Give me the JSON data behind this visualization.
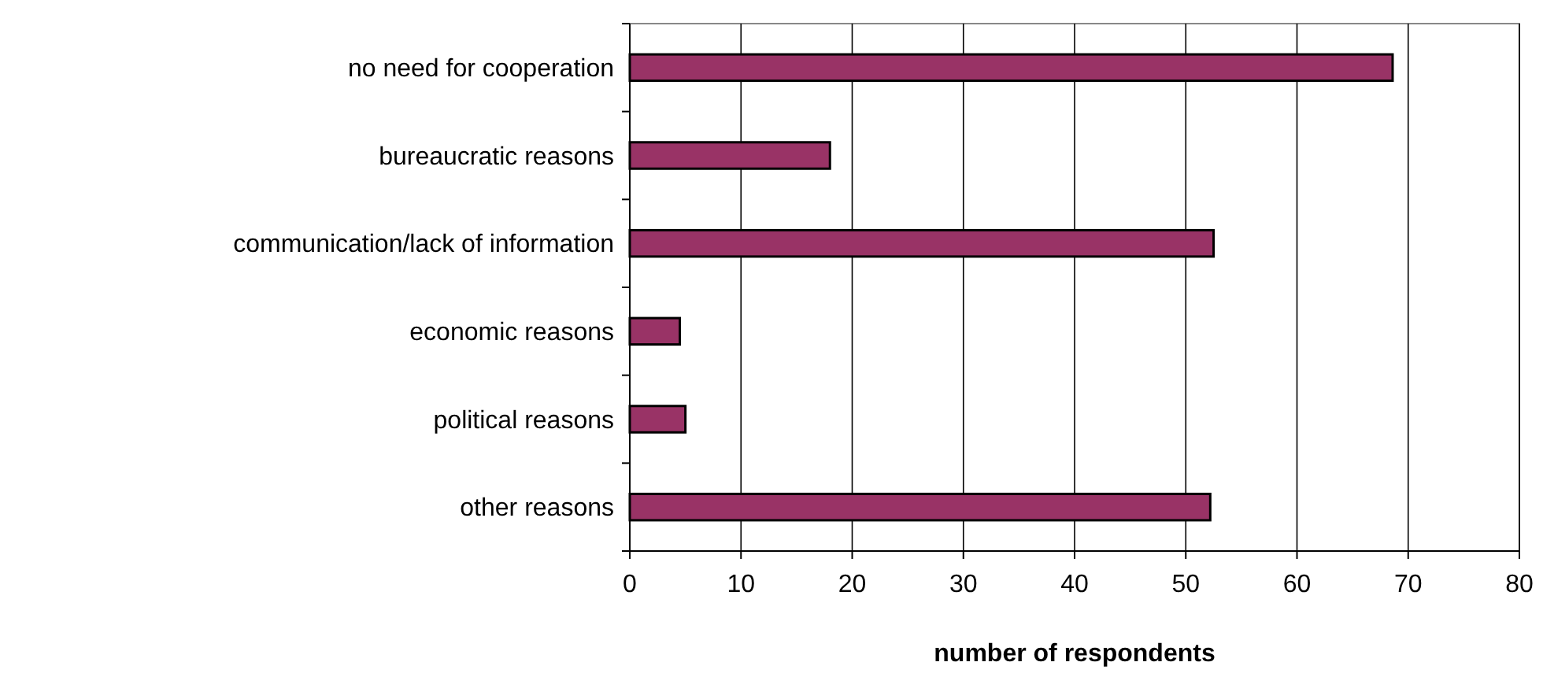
{
  "chart_data": {
    "type": "bar",
    "orientation": "horizontal",
    "xlabel": "number of respondents",
    "categories": [
      "no need for cooperation",
      "bureaucratic reasons",
      "communication/lack of information",
      "economic reasons",
      "political reasons",
      "other reasons"
    ],
    "values": [
      68.6,
      18,
      52.5,
      4.5,
      5,
      52.2
    ],
    "color": "#993366",
    "xlim": [
      0,
      80
    ],
    "xticks": [
      0,
      10,
      20,
      30,
      40,
      50,
      60,
      70,
      80
    ],
    "grid": "x"
  }
}
